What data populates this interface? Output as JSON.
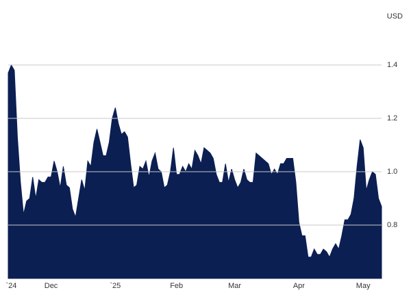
{
  "chart_data": {
    "type": "area",
    "y_axis_label": "USD",
    "color": "#0c1f52",
    "grid": true,
    "categories": [
      null,
      "`24",
      null,
      null,
      null,
      null,
      null,
      null,
      null,
      null,
      null,
      null,
      null,
      null,
      "Dec",
      null,
      null,
      null,
      null,
      null,
      null,
      null,
      null,
      null,
      null,
      null,
      null,
      null,
      null,
      null,
      null,
      null,
      null,
      null,
      null,
      "`25",
      null,
      null,
      null,
      null,
      null,
      null,
      null,
      null,
      null,
      null,
      null,
      null,
      null,
      null,
      null,
      null,
      null,
      null,
      null,
      "Feb",
      null,
      null,
      null,
      null,
      null,
      null,
      null,
      null,
      null,
      null,
      null,
      null,
      null,
      null,
      null,
      null,
      null,
      null,
      "Mar",
      null,
      null,
      null,
      null,
      null,
      null,
      null,
      null,
      null,
      null,
      null,
      null,
      null,
      null,
      null,
      null,
      null,
      null,
      null,
      null,
      "Apr",
      null,
      null,
      null,
      null,
      null,
      null,
      null,
      null,
      null,
      null,
      null,
      null,
      null,
      null,
      null,
      null,
      null,
      null,
      null,
      null,
      "May",
      null,
      null,
      null,
      null,
      null,
      null
    ],
    "values": [
      1.37,
      1.4,
      1.38,
      1.13,
      0.96,
      0.84,
      0.89,
      0.9,
      0.98,
      0.9,
      0.97,
      0.96,
      0.96,
      0.98,
      0.98,
      1.04,
      1.0,
      0.94,
      1.02,
      0.95,
      0.94,
      0.86,
      0.83,
      0.9,
      0.97,
      0.93,
      1.04,
      1.02,
      1.11,
      1.16,
      1.11,
      1.06,
      1.06,
      1.11,
      1.2,
      1.24,
      1.18,
      1.14,
      1.15,
      1.13,
      1.03,
      0.94,
      0.95,
      1.02,
      1.01,
      1.04,
      0.98,
      1.04,
      1.07,
      1.01,
      1.0,
      0.94,
      0.95,
      1.0,
      1.09,
      0.99,
      0.99,
      1.02,
      1.0,
      1.03,
      1.01,
      1.08,
      1.06,
      1.03,
      1.09,
      1.08,
      1.07,
      1.05,
      0.99,
      0.96,
      0.96,
      1.03,
      0.96,
      1.01,
      0.97,
      0.94,
      0.96,
      1.01,
      0.97,
      0.96,
      0.96,
      1.07,
      1.06,
      1.05,
      1.04,
      1.03,
      0.99,
      1.01,
      0.99,
      1.03,
      1.03,
      1.05,
      1.05,
      1.05,
      0.96,
      0.81,
      0.76,
      0.76,
      0.68,
      0.68,
      0.71,
      0.69,
      0.69,
      0.71,
      0.7,
      0.68,
      0.71,
      0.73,
      0.71,
      0.76,
      0.82,
      0.82,
      0.84,
      0.9,
      1.02,
      1.12,
      1.09,
      0.93,
      0.97,
      1.0,
      0.99,
      0.9,
      0.87
    ],
    "ylim": [
      0.6,
      1.6
    ],
    "yticks": [
      {
        "value": 0.8,
        "label": "0.8"
      },
      {
        "value": 1,
        "label": "1.0"
      },
      {
        "value": 1.2,
        "label": "1.2"
      },
      {
        "value": 1.4,
        "label": "1.4"
      }
    ]
  }
}
